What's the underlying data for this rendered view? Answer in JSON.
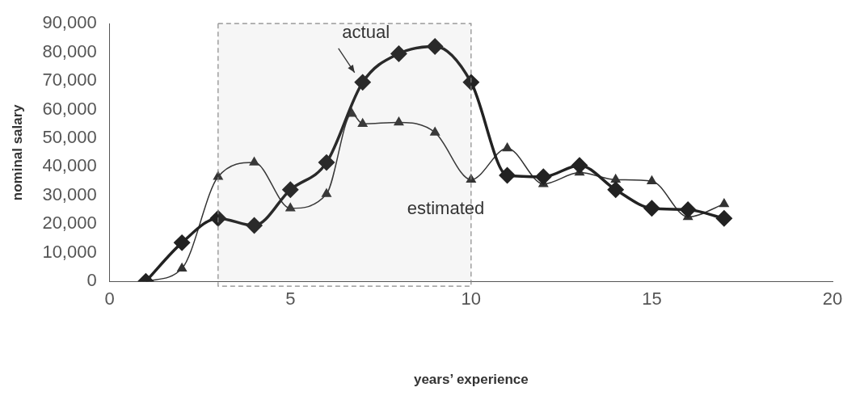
{
  "chart_data": {
    "type": "line",
    "xlabel": "years’ experience",
    "ylabel": "nominal salary",
    "xlim": [
      0,
      20
    ],
    "xticks": [
      0,
      5,
      10,
      15,
      20
    ],
    "ylim": [
      0,
      90000
    ],
    "yticks": [
      {
        "value": 0,
        "label": "0"
      },
      {
        "value": 10000,
        "label": "10,000"
      },
      {
        "value": 20000,
        "label": "20,000"
      },
      {
        "value": 30000,
        "label": "30,000"
      },
      {
        "value": 40000,
        "label": "40,000"
      },
      {
        "value": 50000,
        "label": "50,000"
      },
      {
        "value": 60000,
        "label": "60,000"
      },
      {
        "value": 70000,
        "label": "70,000"
      },
      {
        "value": 80000,
        "label": "80,000"
      },
      {
        "value": 90000,
        "label": "90,000"
      }
    ],
    "grid": false,
    "legend": false,
    "series": [
      {
        "color": "#333333",
        "marker": "triangle",
        "x": [
          1,
          2,
          3,
          4,
          5,
          6,
          6.7,
          7,
          8,
          9,
          10,
          11,
          12,
          13,
          14,
          15,
          16,
          17
        ],
        "values": [
          0,
          4500,
          36500,
          41500,
          25500,
          30500,
          58500,
          55000,
          55500,
          52000,
          35500,
          46500,
          34000,
          38000,
          35500,
          35000,
          22500,
          27000
        ]
      },
      {
        "color": "#222222",
        "marker": "diamond",
        "x": [
          1,
          2,
          3,
          4,
          5,
          6,
          7,
          8,
          9,
          10,
          11,
          12,
          13,
          14,
          15,
          16,
          17
        ],
        "values": [
          0,
          13500,
          22000,
          19500,
          32000,
          41500,
          69500,
          79500,
          82000,
          69500,
          37000,
          36500,
          40500,
          32000,
          25500,
          25000,
          22000
        ]
      }
    ],
    "bands": [
      {
        "axis": "x",
        "from": 3,
        "to": 10,
        "color": "#888888"
      }
    ],
    "annotations": [
      {
        "text": "actual",
        "x": 7,
        "y": 69500
      },
      "estimated"
    ]
  }
}
